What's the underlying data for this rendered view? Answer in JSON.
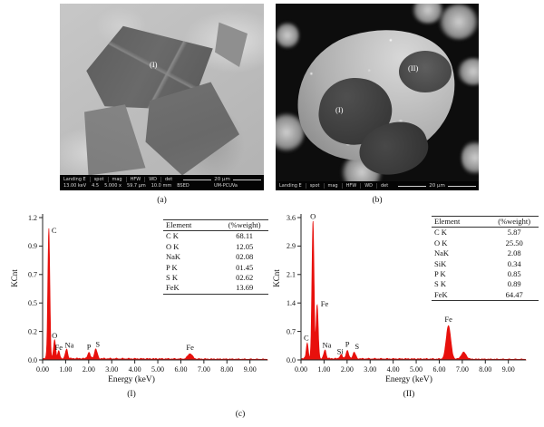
{
  "figure": {
    "panel_a": {
      "region_label": "(I)",
      "caption": "(a)",
      "statusbar": {
        "fields": [
          "Landing E",
          "spot",
          "mag",
          "HFW",
          "WD",
          "det"
        ],
        "values": [
          "13.00 keV",
          "4.5",
          "5.000 x",
          "59.7 μm",
          "10.0 mm",
          "BSED"
        ],
        "lab": "UM-PCUVa",
        "scale_label": "20 μm"
      }
    },
    "panel_b": {
      "region_label_1": "(I)",
      "region_label_2": "(II)",
      "caption": "(b)",
      "statusbar": {
        "fields": [
          "Landing E",
          "spot",
          "mag",
          "HFW",
          "WD",
          "det"
        ],
        "scale_label": "20 μm"
      }
    },
    "caption_c": "(c)"
  },
  "chart_data": [
    {
      "type": "area",
      "title": "(I)",
      "xlabel": "Energy (keV)",
      "ylabel": "KCnt",
      "xlim": [
        0,
        9.76
      ],
      "ylim": [
        0,
        1.2
      ],
      "grid": false,
      "legend": "none",
      "line_color": "#e8100c",
      "x_ticks": [
        "0.00",
        "1.00",
        "2.00",
        "3.00",
        "4.00",
        "5.00",
        "6.00",
        "7.00",
        "8.00",
        "9.00"
      ],
      "y_tick_labels": [
        "0.0",
        "0.2",
        "0.5",
        "0.7",
        "0.9",
        "1.2"
      ],
      "peaks": [
        {
          "label": "C",
          "keV": 0.27,
          "kcnt": 1.1,
          "dx": 3,
          "dy": 4,
          "anchor": "start"
        },
        {
          "label": "O",
          "keV": 0.52,
          "kcnt": 0.16,
          "dx": 0,
          "dy": -3
        },
        {
          "label": "Fe",
          "keV": 0.7,
          "kcnt": 0.06,
          "dx": 0,
          "dy": -3
        },
        {
          "label": "Na",
          "keV": 1.04,
          "kcnt": 0.08,
          "dx": 3,
          "dy": -3
        },
        {
          "label": "P",
          "keV": 2.01,
          "kcnt": 0.05,
          "dx": 0,
          "dy": -5
        },
        {
          "label": "S",
          "keV": 2.31,
          "kcnt": 0.08,
          "dx": 2,
          "dy": -4
        },
        {
          "label": "Fe",
          "keV": 6.4,
          "kcnt": 0.045,
          "dx": 0,
          "dy": -5
        }
      ],
      "inset_table": {
        "headers": [
          "Element",
          "(%weight)"
        ],
        "rows": [
          [
            "C K",
            "68.11"
          ],
          [
            "O K",
            "12.05"
          ],
          [
            "NaK",
            "02.08"
          ],
          [
            "P K",
            "01.45"
          ],
          [
            "S K",
            "02.62"
          ],
          [
            "FeK",
            "13.69"
          ]
        ]
      }
    },
    {
      "type": "area",
      "title": "(II)",
      "xlabel": "Energy (keV)",
      "ylabel": "KCnt",
      "xlim": [
        0,
        9.76
      ],
      "ylim": [
        0,
        3.6
      ],
      "grid": false,
      "legend": "none",
      "line_color": "#e8100c",
      "x_ticks": [
        "0.00",
        "1.00",
        "2.00",
        "3.00",
        "4.00",
        "5.00",
        "6.00",
        "7.00",
        "8.00",
        "9.00"
      ],
      "y_tick_labels": [
        "0.0",
        "0.7",
        "1.4",
        "2.1",
        "2.9",
        "3.6"
      ],
      "peaks": [
        {
          "label": "C",
          "keV": 0.27,
          "kcnt": 0.4,
          "dx": -1,
          "dy": -4
        },
        {
          "label": "O",
          "keV": 0.52,
          "kcnt": 3.5,
          "dx": 0,
          "dy": -3
        },
        {
          "label": "Fe",
          "keV": 0.7,
          "kcnt": 1.35,
          "dx": 4,
          "dy": 0,
          "anchor": "start"
        },
        {
          "label": "Na",
          "keV": 1.04,
          "kcnt": 0.22,
          "dx": 2,
          "dy": -4
        },
        {
          "label": "Si",
          "keV": 1.74,
          "kcnt": 0.1,
          "dx": -1,
          "dy": -2
        },
        {
          "label": "P",
          "keV": 2.01,
          "kcnt": 0.2,
          "dx": 0,
          "dy": -6
        },
        {
          "label": "S",
          "keV": 2.31,
          "kcnt": 0.16,
          "dx": 3,
          "dy": -5
        },
        {
          "label": "Fe",
          "keV": 6.4,
          "kcnt": 0.85,
          "dx": 0,
          "dy": -5
        },
        {
          "label": "",
          "keV": 7.06,
          "kcnt": 0.17
        }
      ],
      "inset_table": {
        "headers": [
          "Element",
          "(%weight)"
        ],
        "rows": [
          [
            "C K",
            "5.87"
          ],
          [
            "O K",
            "25.50"
          ],
          [
            "NaK",
            "2.08"
          ],
          [
            "SiK",
            "0.34"
          ],
          [
            "P K",
            "0.85"
          ],
          [
            "S K",
            "0.89"
          ],
          [
            "FeK",
            "64.47"
          ]
        ]
      }
    }
  ]
}
